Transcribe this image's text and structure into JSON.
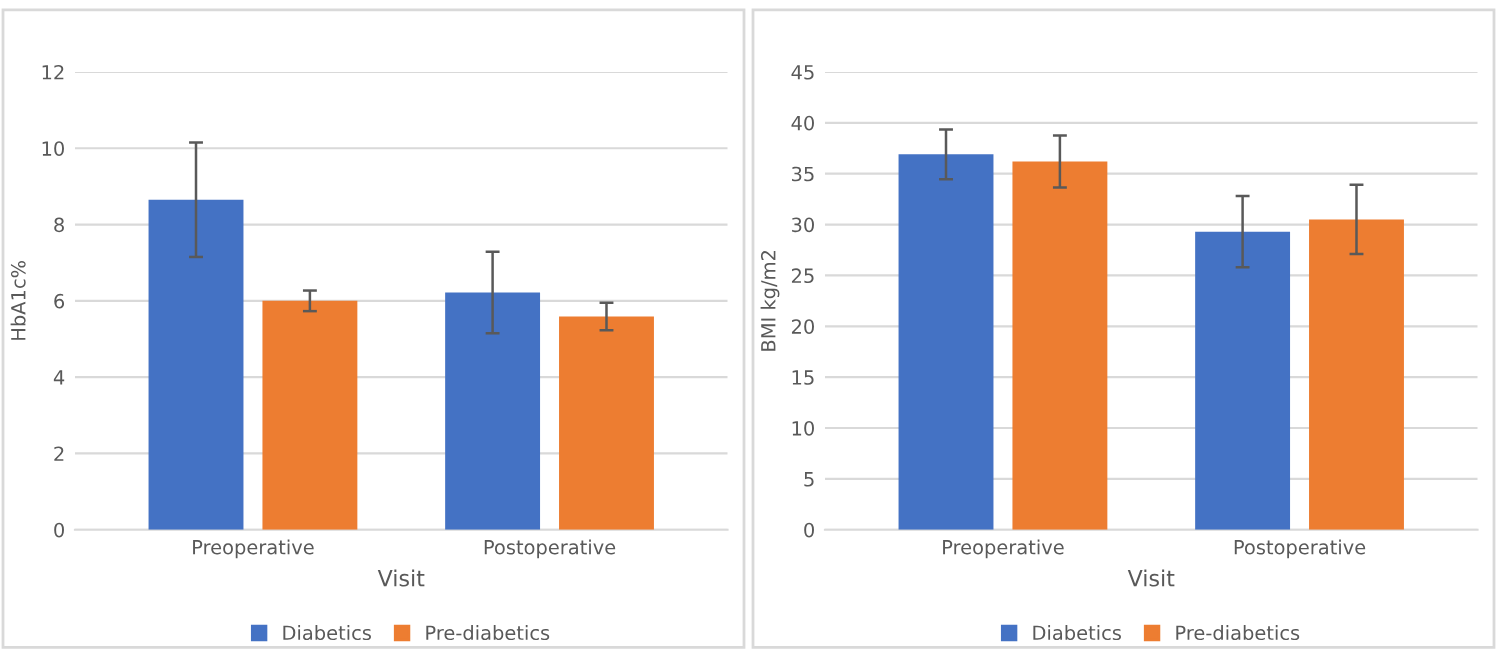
{
  "chart_data": [
    {
      "type": "bar",
      "ylabel": "HbA1c%",
      "xlabel": "Visit",
      "categories": [
        "Preoperative",
        "Postoperative"
      ],
      "ylim": [
        0,
        12
      ],
      "yticks": [
        0,
        2,
        4,
        6,
        8,
        10,
        12
      ],
      "grid": "y",
      "legend": "bottom",
      "series": [
        {
          "name": "Diabetics",
          "color": "#4472c4",
          "values": [
            8.65,
            6.22
          ],
          "errors": [
            1.5,
            1.07
          ]
        },
        {
          "name": "Pre-diabetics",
          "color": "#ed7d31",
          "values": [
            6.0,
            5.59
          ],
          "errors": [
            0.27,
            0.36
          ]
        }
      ]
    },
    {
      "type": "bar",
      "ylabel": "BMI kg/m2",
      "xlabel": "Visit",
      "categories": [
        "Preoperative",
        "Postoperative"
      ],
      "ylim": [
        0,
        45
      ],
      "yticks": [
        0,
        5,
        10,
        15,
        20,
        25,
        30,
        35,
        40,
        45
      ],
      "grid": "y",
      "legend": "bottom",
      "series": [
        {
          "name": "Diabetics",
          "color": "#4472c4",
          "values": [
            36.9,
            29.3
          ],
          "errors": [
            2.45,
            3.5
          ]
        },
        {
          "name": "Pre-diabetics",
          "color": "#ed7d31",
          "values": [
            36.2,
            30.5
          ],
          "errors": [
            2.55,
            3.4
          ]
        }
      ]
    }
  ]
}
